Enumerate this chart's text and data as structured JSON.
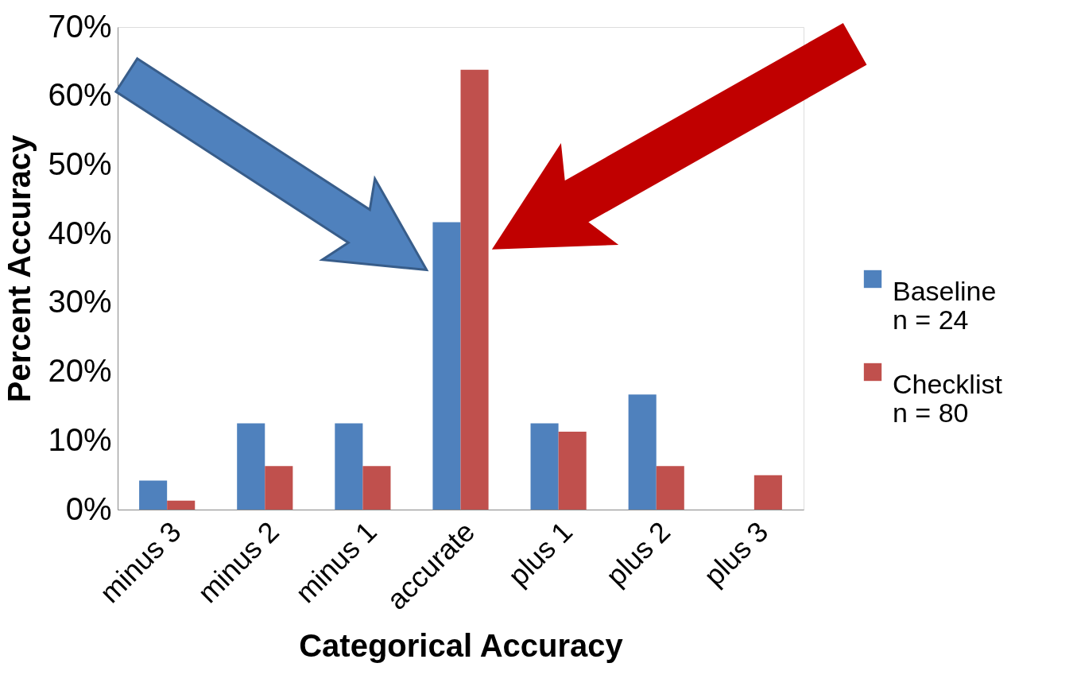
{
  "chart_data": {
    "type": "bar",
    "xlabel": "Categorical Accuracy",
    "ylabel": "Percent Accuracy",
    "categories": [
      "minus 3",
      "minus 2",
      "minus 1",
      "accurate",
      "plus 1",
      "plus 2",
      "plus 3"
    ],
    "series": [
      {
        "name": "Baseline\nn = 24",
        "color": "#4f81bd",
        "values": [
          4.2,
          12.5,
          12.5,
          41.7,
          12.5,
          16.7,
          0
        ]
      },
      {
        "name": "Checklist\nn = 80",
        "color": "#c0504d",
        "values": [
          1.3,
          6.3,
          6.3,
          63.8,
          11.3,
          6.3,
          5.0
        ]
      }
    ],
    "ylim": [
      0,
      70
    ],
    "yticks": [
      {
        "value": 0,
        "label": "0%"
      },
      {
        "value": 10,
        "label": "10%"
      },
      {
        "value": 20,
        "label": "20%"
      },
      {
        "value": 30,
        "label": "30%"
      },
      {
        "value": 40,
        "label": "40%"
      },
      {
        "value": 50,
        "label": "50%"
      },
      {
        "value": 60,
        "label": "60%"
      },
      {
        "value": 70,
        "label": "70%"
      }
    ],
    "grid": false,
    "legend": "right"
  }
}
